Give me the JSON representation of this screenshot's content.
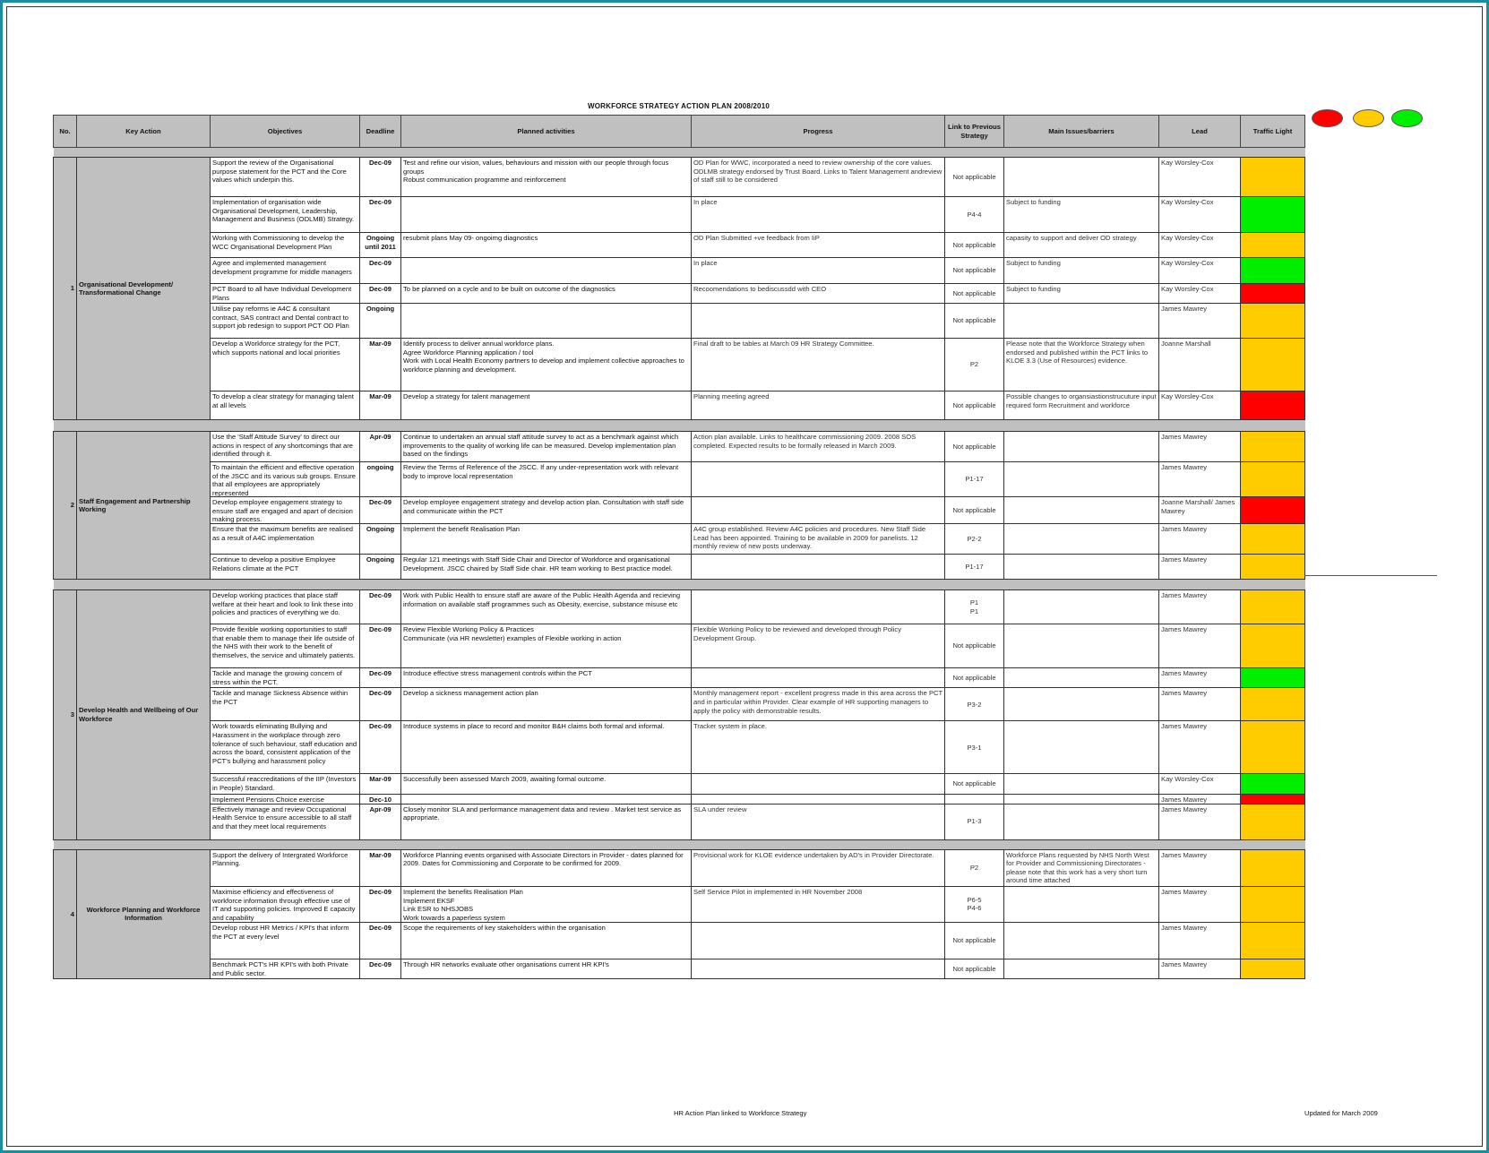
{
  "title": "WORKFORCE STRATEGY ACTION PLAN 2008/2010",
  "colors": {
    "red": "#ff0000",
    "amber": "#ffcc00",
    "green": "#00ee00",
    "header_grey": "#c0c0c0"
  },
  "legend": [
    {
      "color": "red"
    },
    {
      "color": "amber"
    },
    {
      "color": "green"
    }
  ],
  "headers": [
    "No.",
    "Key Action",
    "Objectives",
    "Deadline",
    "Planned activities",
    "Progress",
    "Link to Previous Strategy",
    "Main Issues/barriers",
    "Lead",
    "Traffic Light"
  ],
  "sections": [
    {
      "no": "1",
      "key_action": "Organisational Development/ Transformational Change",
      "rows": [
        {
          "objective": "Support the review of the Organisational purpose statement for the PCT and the Core values which underpin this.",
          "deadline": "Dec-09",
          "planned": "Test and refine our vision, values, behaviours and mission with our people through focus groups\nRobust communication programme and reinforcement",
          "progress": "OD Plan for WWC, incorporated a need to review ownership of the core values.\nODLMB strategy endorsed by Trust Board. Links to Talent Management andreview of staff still to be considered",
          "link": "Not applicable",
          "issues": "",
          "lead": "Kay Worsley-Cox",
          "light": "amber"
        },
        {
          "objective": "Implementation of organisation wide Organisational Development, Leadership, Management and Business (ODLMB) Strategy.",
          "deadline": "Dec-09",
          "planned": "",
          "progress": "In place",
          "link": "P4-4",
          "issues": "Subject to funding",
          "lead": "Kay Worsley-Cox",
          "light": "green"
        },
        {
          "objective": "Working with Commissioning to develop the WCC Organisational Development Plan",
          "deadline": "Ongoing until 2011",
          "planned": "resubmit plans May 09- ongoimg diagnostics",
          "progress": "OD Plan Submitted +ve feedback from IiP",
          "link": "Not applicable",
          "issues": "capasity to support and deliver OD strategy",
          "lead": "Kay Worsley-Cox",
          "light": "amber"
        },
        {
          "objective": "Agree and implemented management development programme for middle managers",
          "deadline": "Dec-09",
          "planned": "",
          "progress": "In place",
          "link": "Not applicable",
          "issues": "Subject to funding",
          "lead": "Kay Worsley-Cox",
          "light": "green"
        },
        {
          "objective": "PCT Board to all have Individual Development Plans",
          "deadline": "Dec-09",
          "planned": "To be planned on a cycle and to be built on outcome of  the diagnostics",
          "progress": "Recoomendations to bediscussdd with CEO",
          "link": "Not applicable",
          "issues": "Subject to funding",
          "lead": "Kay Worsley-Cox",
          "light": "red"
        },
        {
          "objective": "Utilise pay reforms ie A4C & consultant contract, SAS contract and Dental contract to support job redesign to support PCT OD Plan",
          "deadline": "Ongoing",
          "planned": "",
          "progress": "",
          "link": "Not applicable",
          "issues": "",
          "lead": "James Mawrey",
          "light": "amber"
        },
        {
          "objective": "Develop a Workforce strategy for the PCT, which supports national and local priorities",
          "deadline": "Mar-09",
          "planned": "Identify process to deliver annual workforce plans.\nAgree Workforce Planning application / tool\nWork with Local Health Economy partners to develop and implement collective approaches to workforce planning and development.",
          "progress": "Final draft to be tables at March 09 HR Strategy Committee.",
          "link": "P2",
          "issues": "Please note that the Workforce Strategy when endorsed and published within the PCT  links to KLOE 3.3 (Use of Resources) evidence.",
          "lead": "Joanne Marshall",
          "light": "amber"
        },
        {
          "objective": "To develop a clear strategy for managing talent at all levels",
          "deadline": "Mar-09",
          "planned": "Develop a strategy for talent management",
          "progress": "Planning meeting agreed",
          "link": "Not applicable",
          "issues": "Possible changes to organsiastionstrucuture  input required form Recruitment and workforce",
          "lead": "Kay Worsley-Cox",
          "light": "red"
        }
      ]
    },
    {
      "no": "2",
      "key_action": "Staff Engagement and Partnership Working",
      "rows": [
        {
          "objective": "Use the 'Staff Attitude Survey' to direct our actions in respect of any shortcomings that are identified through it.",
          "deadline": "Apr-09",
          "planned": "Continue to undertaken an annual staff attitude survey to act as a benchmark against which improvements to the quality of working life can be measured. Develop implementation plan based on the findings",
          "progress": "Action plan available. Links to healthcare commissioning 2009. 2008 SOS completed. Expected results to be formally released in March 2009.",
          "link": "Not applicable",
          "issues": "",
          "lead": "James Mawrey",
          "light": "amber"
        },
        {
          "objective": "To maintain the efficient and effective operation of the JSCC and its various sub groups. Ensure that all employees are appropriately represented",
          "deadline": "ongoing",
          "planned": "Review the Terms of Reference of the JSCC. If any under-representation work with relevant body to improve local representation",
          "progress": "",
          "link": "P1-17",
          "issues": "",
          "lead": "James Mawrey",
          "light": "amber"
        },
        {
          "objective": "Develop employee engagement strategy to ensure staff are engaged and apart of decision making process.",
          "deadline": "Dec-09",
          "planned": "Develop employee engagement strategy and develop action plan. Consultation with staff side and communicate within the PCT",
          "progress": "",
          "link": "Not applicable",
          "issues": "",
          "lead": "Joanne Marshall/ James Mawrey",
          "light": "red"
        },
        {
          "objective": "Ensure that the maximum benefits are realised as a result of A4C implementation",
          "deadline": "Ongoing",
          "planned": "Implement the benefit Realisation Plan",
          "progress": "A4C group established. Review A4C policies and procedures. New Staff Side Lead has been appointed. Training to be available in 2009 for panelists. 12 monthly review of new posts underway.",
          "link": "P2-2",
          "issues": "",
          "lead": "James Mawrey",
          "light": "amber"
        },
        {
          "objective": "Continue to develop a positive Employee Relations climate at the PCT",
          "deadline": "Ongoing",
          "planned": "Regular 121 meetings with Staff Side Chair and Director of Workforce and organisational Development. JSCC chaired by Staff Side chair. HR team working to Best practice model.",
          "progress": "",
          "link": "P1-17",
          "issues": "",
          "lead": "James Mawrey",
          "light": "amber"
        }
      ]
    },
    {
      "no": "3",
      "key_action": "Develop Health and Wellbeing of Our Workforce",
      "rows": [
        {
          "objective": "Develop working practices that place staff welfare at their heart and look to link these into policies and practices of everything we do.",
          "deadline": "Dec-09",
          "planned": "Work with Public Health to ensure staff are aware of the Public Health Agenda and recieving information on available staff programmes such as Obesity, exercise, substance misuse etc",
          "progress": "",
          "link": "P1\nP1",
          "issues": "",
          "lead": "James Mawrey",
          "light": "amber"
        },
        {
          "objective": "Provide flexible working opportunities to staff that enable them to manage their life outside of the NHS with their work to the benefit of themselves, the service and ultimately patients.",
          "deadline": "Dec-09",
          "planned": "Review Flexible Working Policy & Practices\nCommunicate (via HR newsletter) examples of Flexible working in action",
          "progress": "Flexible Working Policy to be reviewed and developed through Policy Development Group.",
          "link": "Not applicable",
          "issues": "",
          "lead": "James Mawrey",
          "light": "amber"
        },
        {
          "objective": "Tackle and manage the growing concern of stress within the PCT.",
          "deadline": "Dec-09",
          "planned": "Introduce effective stress management controls within the PCT",
          "progress": "",
          "link": "Not applicable",
          "issues": "",
          "lead": "James Mawrey",
          "light": "green"
        },
        {
          "objective": "Tackle and manage Sickness Absence within the PCT",
          "deadline": "Dec-09",
          "planned": "Develop a sickness management action plan",
          "progress": "Monthly management report - excellent progress made in this area across the PCT and in particular within Provider. Clear example of HR supporting managers to apply the policy with demonstrable results.",
          "link": "P3-2",
          "issues": "",
          "lead": "James Mawrey",
          "light": "amber"
        },
        {
          "objective": "Work towards eliminating Bullying and Harassment in the workplace through zero tolerance of such behaviour, staff education and across the board, consistent application of the PCT's bullying and harassment policy",
          "deadline": "Dec-09",
          "planned": "Introduce systems in place to record and monitor B&H claims both formal and informal.",
          "progress": "Tracker system in place.",
          "link": "P3-1",
          "issues": "",
          "lead": "James Mawrey",
          "light": "amber"
        },
        {
          "objective": "Successful reaccreditations of the IIP (Investors in People) Standard.",
          "deadline": "Mar-09",
          "planned": "Successfully been assessed March 2009, awaiting formal outcome.",
          "progress": "",
          "link": "Not applicable",
          "issues": "",
          "lead": "Kay Worsley-Cox",
          "light": "green"
        },
        {
          "objective": "Implement Pensions Choice exercise",
          "deadline": "Dec-10",
          "planned": "",
          "progress": "",
          "link": "",
          "issues": "",
          "lead": "James Mawrey",
          "light": "red"
        },
        {
          "objective": "Effectively manage and review Occupational Health Service to ensure accessible to all staff and that they meet local requirements",
          "deadline": "Apr-09",
          "planned": "Closely monitor SLA and performance management data and review . Market test service as appropriate.",
          "progress": "SLA under review",
          "link": "P1-3",
          "issues": "",
          "lead": "James Mawrey",
          "light": "amber"
        }
      ]
    },
    {
      "no": "4",
      "key_action": "Workforce Planning and Workforce Information",
      "rows": [
        {
          "objective": "Support the delivery of Intergrated Workforce Planning.",
          "deadline": "Mar-09",
          "planned": "Workforce Planning events organised with Associate Directors in Provider - dates planned for 2009. Dates for Commissioning and Corporate to be confirmed for 2009.",
          "progress": " Provisional work for KLOE evidence undertaken by AD's in Provider Directorate.",
          "link": "P2",
          "issues": "Workforce Plans requested by NHS North West for Provider and Commissioning Directorates - please note that this work has a very short turn around time attached",
          "lead": "James Mawrey",
          "light": "amber"
        },
        {
          "objective": "Maximise efficiency and effectiveness of workforce information through effective use of IT and supporting policies. Improved E capacity and capability",
          "deadline": "Dec-09",
          "planned": "Implement the benefits Realisation Plan\nImplement EKSF\nLink ESR to NHSJOBS\nWork towards a paperless system",
          "progress": "Self Service Pilot in implemented in HR November 2008",
          "link": "P6-5\nP4-6",
          "issues": "",
          "lead": "James Mawrey",
          "light": "amber"
        },
        {
          "objective": "Develop robust HR Metrics / KPI's that inform the PCT at every level",
          "deadline": "Dec-09",
          "planned": "Scope the requirements of key stakeholders within the organisation",
          "progress": "",
          "link": "Not applicable",
          "issues": "",
          "lead": "James Mawrey",
          "light": "amber"
        },
        {
          "objective": "Benchmark PCT's HR KPI's with both Private and Public sector.",
          "deadline": "Dec-09",
          "planned": "Through HR networks evaluate other organisations current HR KPI's",
          "progress": "",
          "link": "Not applicable",
          "issues": "",
          "lead": "James Mawrey",
          "light": "amber"
        }
      ]
    }
  ],
  "footer": {
    "left": "HR Action Plan linked to Workforce Strategy",
    "right": "Updated for March 2009"
  }
}
